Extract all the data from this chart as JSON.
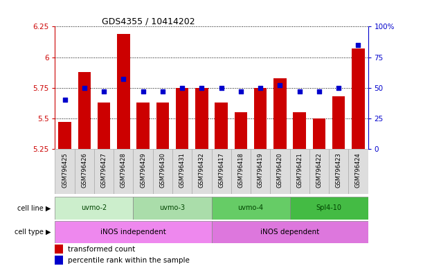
{
  "title": "GDS4355 / 10414202",
  "samples": [
    "GSM796425",
    "GSM796426",
    "GSM796427",
    "GSM796428",
    "GSM796429",
    "GSM796430",
    "GSM796431",
    "GSM796432",
    "GSM796417",
    "GSM796418",
    "GSM796419",
    "GSM796420",
    "GSM796421",
    "GSM796422",
    "GSM796423",
    "GSM796424"
  ],
  "bar_values": [
    5.47,
    5.88,
    5.63,
    6.19,
    5.63,
    5.63,
    5.75,
    5.75,
    5.63,
    5.55,
    5.75,
    5.83,
    5.55,
    5.5,
    5.68,
    6.07
  ],
  "dot_values": [
    40,
    50,
    47,
    57,
    47,
    47,
    50,
    50,
    50,
    47,
    50,
    52,
    47,
    47,
    50,
    85
  ],
  "ylim_left": [
    5.25,
    6.25
  ],
  "ylim_right": [
    0,
    100
  ],
  "yticks_left": [
    5.25,
    5.5,
    5.75,
    6.0,
    6.25
  ],
  "yticks_right": [
    0,
    25,
    50,
    75,
    100
  ],
  "ytick_labels_left": [
    "5.25",
    "5.5",
    "5.75",
    "6",
    "6.25"
  ],
  "ytick_labels_right": [
    "0",
    "25",
    "50",
    "75",
    "100%"
  ],
  "bar_color": "#cc0000",
  "dot_color": "#0000cc",
  "bar_bottom": 5.25,
  "cell_line_groups": [
    {
      "label": "uvmo-2",
      "start": 0,
      "end": 3,
      "color": "#cceecc"
    },
    {
      "label": "uvmo-3",
      "start": 4,
      "end": 7,
      "color": "#aaddaa"
    },
    {
      "label": "uvmo-4",
      "start": 8,
      "end": 11,
      "color": "#66cc66"
    },
    {
      "label": "Spl4-10",
      "start": 12,
      "end": 15,
      "color": "#44bb44"
    }
  ],
  "cell_type_groups": [
    {
      "label": "iNOS independent",
      "start": 0,
      "end": 7,
      "color": "#ee88ee"
    },
    {
      "label": "iNOS dependent",
      "start": 8,
      "end": 15,
      "color": "#dd77dd"
    }
  ],
  "sample_box_color": "#dddddd",
  "sample_box_edge": "#aaaaaa",
  "axis_left_color": "#cc0000",
  "axis_right_color": "#0000cc",
  "background_color": "#ffffff"
}
